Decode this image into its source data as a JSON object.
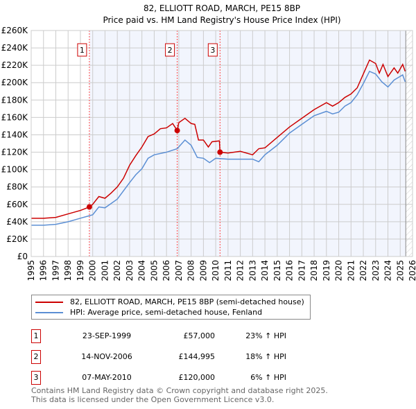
{
  "chart_data": {
    "type": "line",
    "title": "82, ELLIOTT ROAD, MARCH, PE15 8BP",
    "subtitle": "Price paid vs. HM Land Registry's House Price Index (HPI)",
    "xlim": [
      1995,
      2026
    ],
    "ylim": [
      0,
      260000
    ],
    "x_ticks": [
      "1995",
      "1996",
      "1997",
      "1998",
      "1999",
      "2000",
      "2001",
      "2002",
      "2003",
      "2004",
      "2005",
      "2006",
      "2007",
      "2008",
      "2009",
      "2010",
      "2011",
      "2012",
      "2013",
      "2014",
      "2015",
      "2016",
      "2017",
      "2018",
      "2019",
      "2020",
      "2021",
      "2022",
      "2023",
      "2024",
      "2025",
      "2026"
    ],
    "y_ticks": [
      {
        "v": 0,
        "label": "£0"
      },
      {
        "v": 20000,
        "label": "£20K"
      },
      {
        "v": 40000,
        "label": "£40K"
      },
      {
        "v": 60000,
        "label": "£60K"
      },
      {
        "v": 80000,
        "label": "£80K"
      },
      {
        "v": 100000,
        "label": "£100K"
      },
      {
        "v": 120000,
        "label": "£120K"
      },
      {
        "v": 140000,
        "label": "£140K"
      },
      {
        "v": 160000,
        "label": "£160K"
      },
      {
        "v": 180000,
        "label": "£180K"
      },
      {
        "v": 200000,
        "label": "£200K"
      },
      {
        "v": 220000,
        "label": "£220K"
      },
      {
        "v": 240000,
        "label": "£240K"
      },
      {
        "v": 260000,
        "label": "£260K"
      }
    ],
    "grid": true,
    "shaded_from": 1999.73,
    "hatched_from": 2025.45,
    "series": [
      {
        "name": "82, ELLIOTT ROAD, MARCH, PE15 8BP (semi-detached house)",
        "color": "#cc0000",
        "points": [
          [
            1995,
            44000
          ],
          [
            1996,
            44000
          ],
          [
            1997,
            45000
          ],
          [
            1998,
            49000
          ],
          [
            1999,
            53000
          ],
          [
            1999.73,
            57000
          ],
          [
            2000,
            60000
          ],
          [
            2000.5,
            69000
          ],
          [
            2001,
            67000
          ],
          [
            2001.5,
            73000
          ],
          [
            2002,
            80000
          ],
          [
            2002.5,
            90000
          ],
          [
            2003,
            105000
          ],
          [
            2003.5,
            116000
          ],
          [
            2004,
            126000
          ],
          [
            2004.5,
            138000
          ],
          [
            2005,
            141000
          ],
          [
            2005.5,
            147000
          ],
          [
            2006,
            148000
          ],
          [
            2006.5,
            153000
          ],
          [
            2006.87,
            144995
          ],
          [
            2007,
            154000
          ],
          [
            2007.5,
            159000
          ],
          [
            2008,
            153000
          ],
          [
            2008.3,
            152000
          ],
          [
            2008.6,
            134000
          ],
          [
            2009,
            134000
          ],
          [
            2009.4,
            126000
          ],
          [
            2009.7,
            132000
          ],
          [
            2010.3,
            133000
          ],
          [
            2010.35,
            120000
          ],
          [
            2011,
            119000
          ],
          [
            2012,
            121000
          ],
          [
            2013,
            117000
          ],
          [
            2013.5,
            124000
          ],
          [
            2014,
            125000
          ],
          [
            2015,
            137000
          ],
          [
            2016,
            149000
          ],
          [
            2017,
            159000
          ],
          [
            2018,
            169000
          ],
          [
            2019,
            177000
          ],
          [
            2019.5,
            173000
          ],
          [
            2020,
            177000
          ],
          [
            2020.5,
            183000
          ],
          [
            2021,
            187000
          ],
          [
            2021.5,
            194000
          ],
          [
            2022,
            210000
          ],
          [
            2022.5,
            226000
          ],
          [
            2023,
            222000
          ],
          [
            2023.3,
            211000
          ],
          [
            2023.6,
            221000
          ],
          [
            2024,
            207000
          ],
          [
            2024.5,
            217000
          ],
          [
            2024.8,
            211000
          ],
          [
            2025.2,
            221000
          ],
          [
            2025.4,
            213000
          ]
        ]
      },
      {
        "name": "HPI: Average price, semi-detached house, Fenland",
        "color": "#5b8fd4",
        "points": [
          [
            1995,
            36000
          ],
          [
            1996,
            36000
          ],
          [
            1997,
            37000
          ],
          [
            1998,
            40000
          ],
          [
            1999,
            44000
          ],
          [
            2000,
            48000
          ],
          [
            2000.5,
            57000
          ],
          [
            2001,
            56000
          ],
          [
            2002,
            66000
          ],
          [
            2003,
            85000
          ],
          [
            2003.5,
            94000
          ],
          [
            2004,
            101000
          ],
          [
            2004.5,
            113000
          ],
          [
            2005,
            117000
          ],
          [
            2006,
            120000
          ],
          [
            2006.87,
            124000
          ],
          [
            2007.5,
            134000
          ],
          [
            2008,
            128000
          ],
          [
            2008.5,
            114000
          ],
          [
            2009,
            113000
          ],
          [
            2009.5,
            108000
          ],
          [
            2010,
            113000
          ],
          [
            2011,
            112000
          ],
          [
            2012,
            112000
          ],
          [
            2013,
            112000
          ],
          [
            2013.5,
            109000
          ],
          [
            2014,
            117000
          ],
          [
            2015,
            128000
          ],
          [
            2016,
            142000
          ],
          [
            2017,
            152000
          ],
          [
            2018,
            162000
          ],
          [
            2019,
            167000
          ],
          [
            2019.5,
            164000
          ],
          [
            2020,
            166000
          ],
          [
            2020.5,
            173000
          ],
          [
            2021,
            177000
          ],
          [
            2021.5,
            186000
          ],
          [
            2022,
            199000
          ],
          [
            2022.5,
            213000
          ],
          [
            2023,
            210000
          ],
          [
            2023.5,
            201000
          ],
          [
            2024,
            195000
          ],
          [
            2024.5,
            203000
          ],
          [
            2025.2,
            209000
          ],
          [
            2025.4,
            201000
          ]
        ]
      }
    ],
    "sales": [
      {
        "num": "1",
        "x": 1999.73,
        "y": 57000
      },
      {
        "num": "2",
        "x": 2006.87,
        "y": 144995
      },
      {
        "num": "3",
        "x": 2010.35,
        "y": 120000
      }
    ],
    "legend_placement": "bottom"
  },
  "legend": {
    "property": "82, ELLIOTT ROAD, MARCH, PE15 8BP (semi-detached house)",
    "hpi": "HPI: Average price, semi-detached house, Fenland"
  },
  "transactions": [
    {
      "num": "1",
      "date": "23-SEP-1999",
      "price": "£57,000",
      "hpi": "23% ↑ HPI"
    },
    {
      "num": "2",
      "date": "14-NOV-2006",
      "price": "£144,995",
      "hpi": "18% ↑ HPI"
    },
    {
      "num": "3",
      "date": "07-MAY-2010",
      "price": "£120,000",
      "hpi": "6% ↑ HPI"
    }
  ],
  "footer": {
    "line1": "Contains HM Land Registry data © Crown copyright and database right 2025.",
    "line2": "This data is licensed under the Open Government Licence v3.0."
  }
}
